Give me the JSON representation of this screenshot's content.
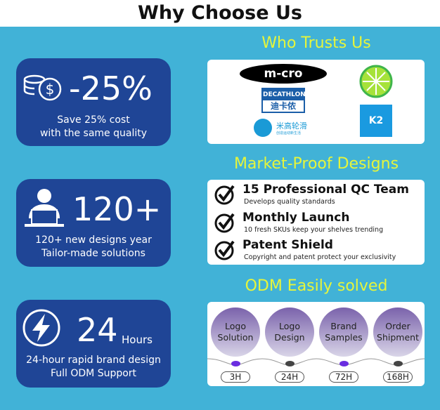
{
  "title": "Why Choose Us",
  "cards": [
    {
      "big": "-25%",
      "line1": "Save 25% cost",
      "line2": "with the same quality",
      "icon": "coins-dollar-icon"
    },
    {
      "big": "120+",
      "line1": "120+ new designs year",
      "line2": "Tailor-made solutions",
      "icon": "person-laptop-icon"
    },
    {
      "big": "24",
      "unit": "Hours",
      "line1": "24-hour rapid brand design",
      "line2": "Full ODM Support",
      "icon": "lightning-icon"
    }
  ],
  "sections": {
    "trust": {
      "heading": "Who Trusts Us",
      "logos": [
        "m-cro",
        "DECATHLON",
        "迪卡侬",
        "米高轮滑",
        "创造运动新生活",
        "lime",
        "K2"
      ]
    },
    "market": {
      "heading": "Market-Proof Designs",
      "items": [
        {
          "title": "15 Professional QC Team",
          "desc": "Develops quality standards"
        },
        {
          "title": "Monthly Launch",
          "desc": "10 fresh SKUs keep your shelves trending"
        },
        {
          "title": "Patent Shield",
          "desc": "Copyright and patent protect your exclusivity"
        }
      ]
    },
    "odm": {
      "heading": "ODM Easily solved",
      "steps": [
        {
          "l1": "Logo",
          "l2": "Solution",
          "time": "3H"
        },
        {
          "l1": "Logo",
          "l2": "Design",
          "time": "24H"
        },
        {
          "l1": "Brand",
          "l2": "Samples",
          "time": "72H"
        },
        {
          "l1": "Order",
          "l2": "Shipment",
          "time": "168H"
        }
      ]
    }
  },
  "colors": {
    "background": "#41b2d7",
    "card": "#1f4596",
    "heading": "#e6f53b",
    "accent_dot": "#6a2de0"
  }
}
